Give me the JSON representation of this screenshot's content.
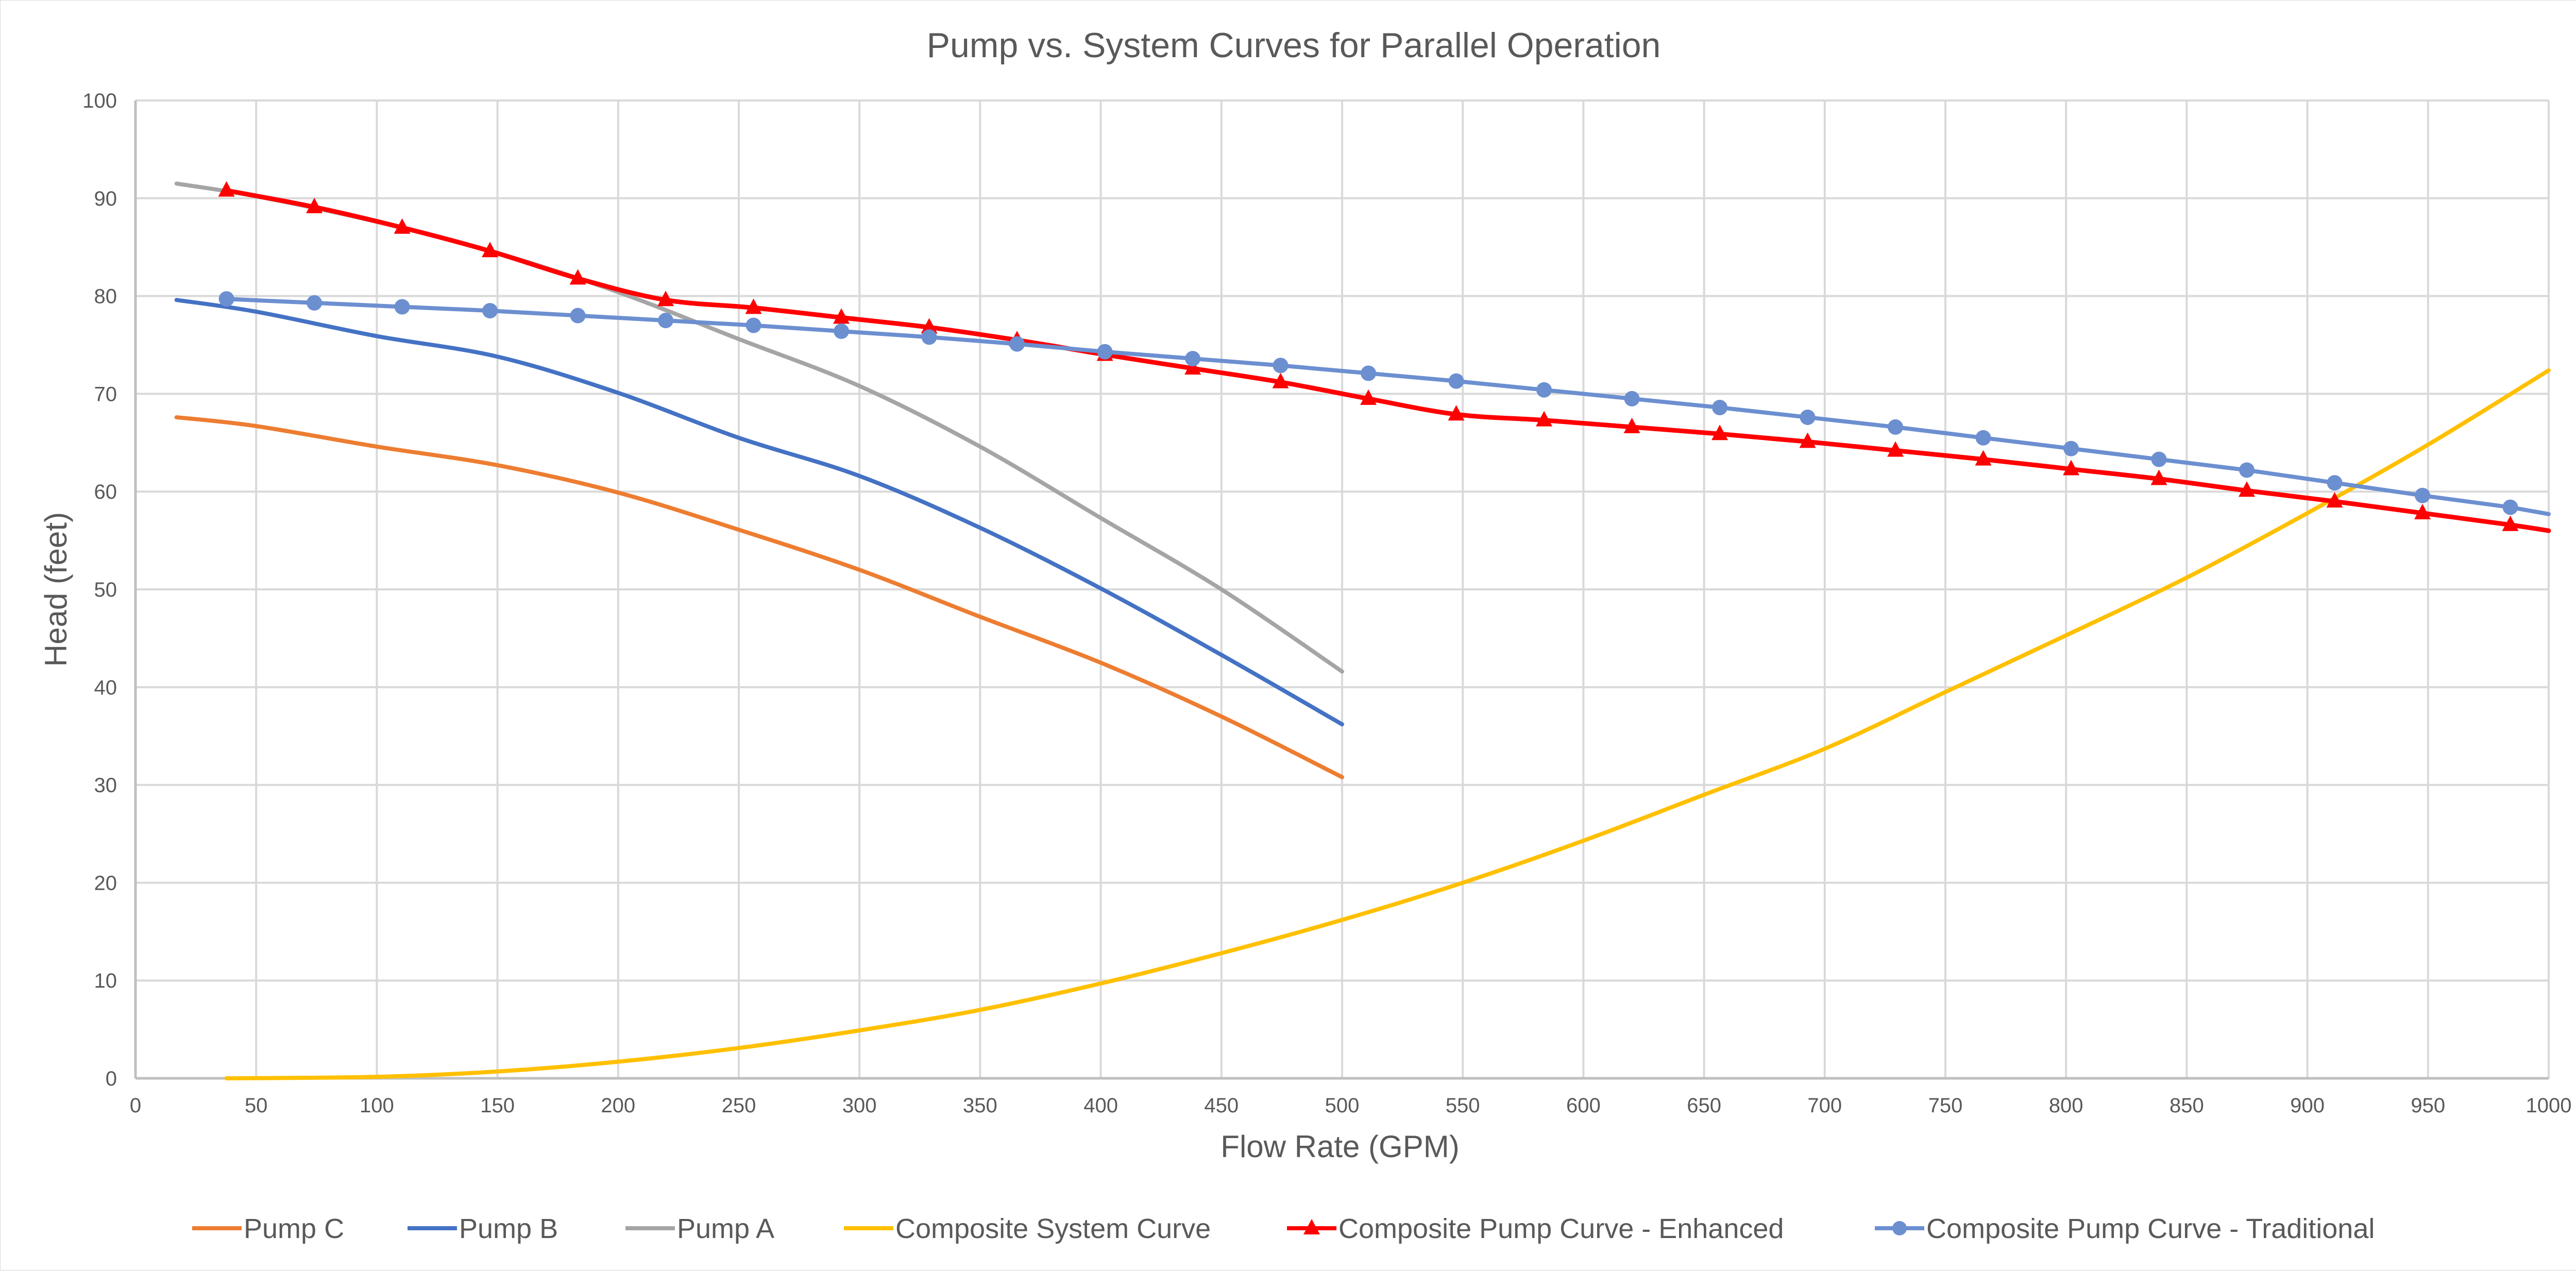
{
  "chart_data": {
    "type": "line",
    "title": "Pump vs. System Curves for Parallel Operation",
    "xlabel": "Flow Rate (GPM)",
    "ylabel": "Head (feet)",
    "xlim": [
      0,
      1000
    ],
    "ylim": [
      0,
      100
    ],
    "x_ticks": [
      0,
      50,
      100,
      150,
      200,
      250,
      300,
      350,
      400,
      450,
      500,
      550,
      600,
      650,
      700,
      750,
      800,
      850,
      900,
      950,
      1000
    ],
    "y_ticks": [
      0,
      10,
      20,
      30,
      40,
      50,
      60,
      70,
      80,
      90,
      100
    ],
    "grid": "both",
    "legend_position": "bottom",
    "series": [
      {
        "name": "Pump C",
        "color": "#ED7D31",
        "marker": "none",
        "smooth": true,
        "x": [
          17,
          50,
          100,
          150,
          200,
          250,
          300,
          350,
          400,
          450,
          500
        ],
        "y": [
          67.6,
          66.7,
          64.6,
          62.7,
          59.9,
          56.1,
          52.0,
          47.2,
          42.5,
          37.0,
          30.8
        ]
      },
      {
        "name": "Pump B",
        "color": "#4472C4",
        "marker": "none",
        "smooth": true,
        "x": [
          17,
          50,
          100,
          150,
          200,
          250,
          300,
          350,
          400,
          450,
          500
        ],
        "y": [
          79.6,
          78.4,
          75.9,
          73.8,
          70.1,
          65.5,
          61.6,
          56.3,
          50.1,
          43.3,
          36.2
        ]
      },
      {
        "name": "Pump A",
        "color": "#A5A5A5",
        "marker": "none",
        "smooth": true,
        "x": [
          17,
          50,
          100,
          150,
          200,
          250,
          300,
          350,
          400,
          450,
          500
        ],
        "y": [
          91.5,
          90.2,
          87.6,
          84.4,
          80.4,
          75.6,
          70.8,
          64.6,
          57.3,
          50.0,
          41.6
        ]
      },
      {
        "name": "Composite System Curve",
        "color": "#FFC000",
        "marker": "none",
        "smooth": true,
        "x": [
          37.7,
          100,
          150,
          200,
          250,
          300,
          350,
          400,
          450,
          500,
          550,
          600,
          650,
          700,
          750,
          800,
          850,
          900,
          950,
          1000
        ],
        "y": [
          0,
          0.15,
          0.7,
          1.7,
          3.1,
          4.9,
          7.0,
          9.7,
          12.8,
          16.2,
          20.0,
          24.3,
          29.0,
          33.7,
          39.5,
          45.3,
          51.2,
          57.8,
          64.8,
          72.4
        ]
      },
      {
        "name": "Composite Pump Curve - Enhanced",
        "color": "#FF0000",
        "marker": "triangle",
        "smooth": true,
        "x": [
          37.7,
          74.1,
          110.5,
          146.9,
          183.3,
          219.7,
          256.1,
          292.5,
          328.9,
          365.3,
          401.7,
          438.1,
          474.5,
          510.9,
          547.3,
          583.7,
          620.1,
          656.5,
          692.9,
          729.3,
          765.7,
          802.1,
          838.5,
          874.9,
          911.3,
          947.7,
          984.1
        ],
        "y": [
          90.8,
          89.1,
          87.0,
          84.6,
          81.8,
          79.6,
          78.8,
          77.8,
          76.8,
          75.5,
          74.0,
          72.6,
          71.2,
          69.5,
          67.9,
          67.3,
          66.6,
          65.9,
          65.1,
          64.2,
          63.3,
          62.3,
          61.3,
          60.1,
          59.0,
          57.8,
          56.6
        ],
        "line_extends_to": {
          "x": 1000,
          "y": 56.0
        }
      },
      {
        "name": "Composite Pump Curve - Traditional",
        "color": "#6C8FD0",
        "marker": "circle",
        "smooth": false,
        "x": [
          37.7,
          74.1,
          110.5,
          146.9,
          183.3,
          219.7,
          256.1,
          292.5,
          328.9,
          365.3,
          401.7,
          438.1,
          474.5,
          510.9,
          547.3,
          583.7,
          620.1,
          656.5,
          692.9,
          729.3,
          765.7,
          802.1,
          838.5,
          874.9,
          911.3,
          947.7,
          984.1
        ],
        "y": [
          79.7,
          79.3,
          78.9,
          78.5,
          78.0,
          77.5,
          77.0,
          76.4,
          75.8,
          75.1,
          74.3,
          73.6,
          72.9,
          72.1,
          71.3,
          70.4,
          69.5,
          68.6,
          67.6,
          66.6,
          65.5,
          64.4,
          63.3,
          62.2,
          60.9,
          59.6,
          58.4
        ],
        "line_extends_to": {
          "x": 1000,
          "y": 57.7
        }
      }
    ]
  },
  "colors": {
    "text": "#595959",
    "grid": "#d9d9d9",
    "axis": "#bfbfbf"
  }
}
